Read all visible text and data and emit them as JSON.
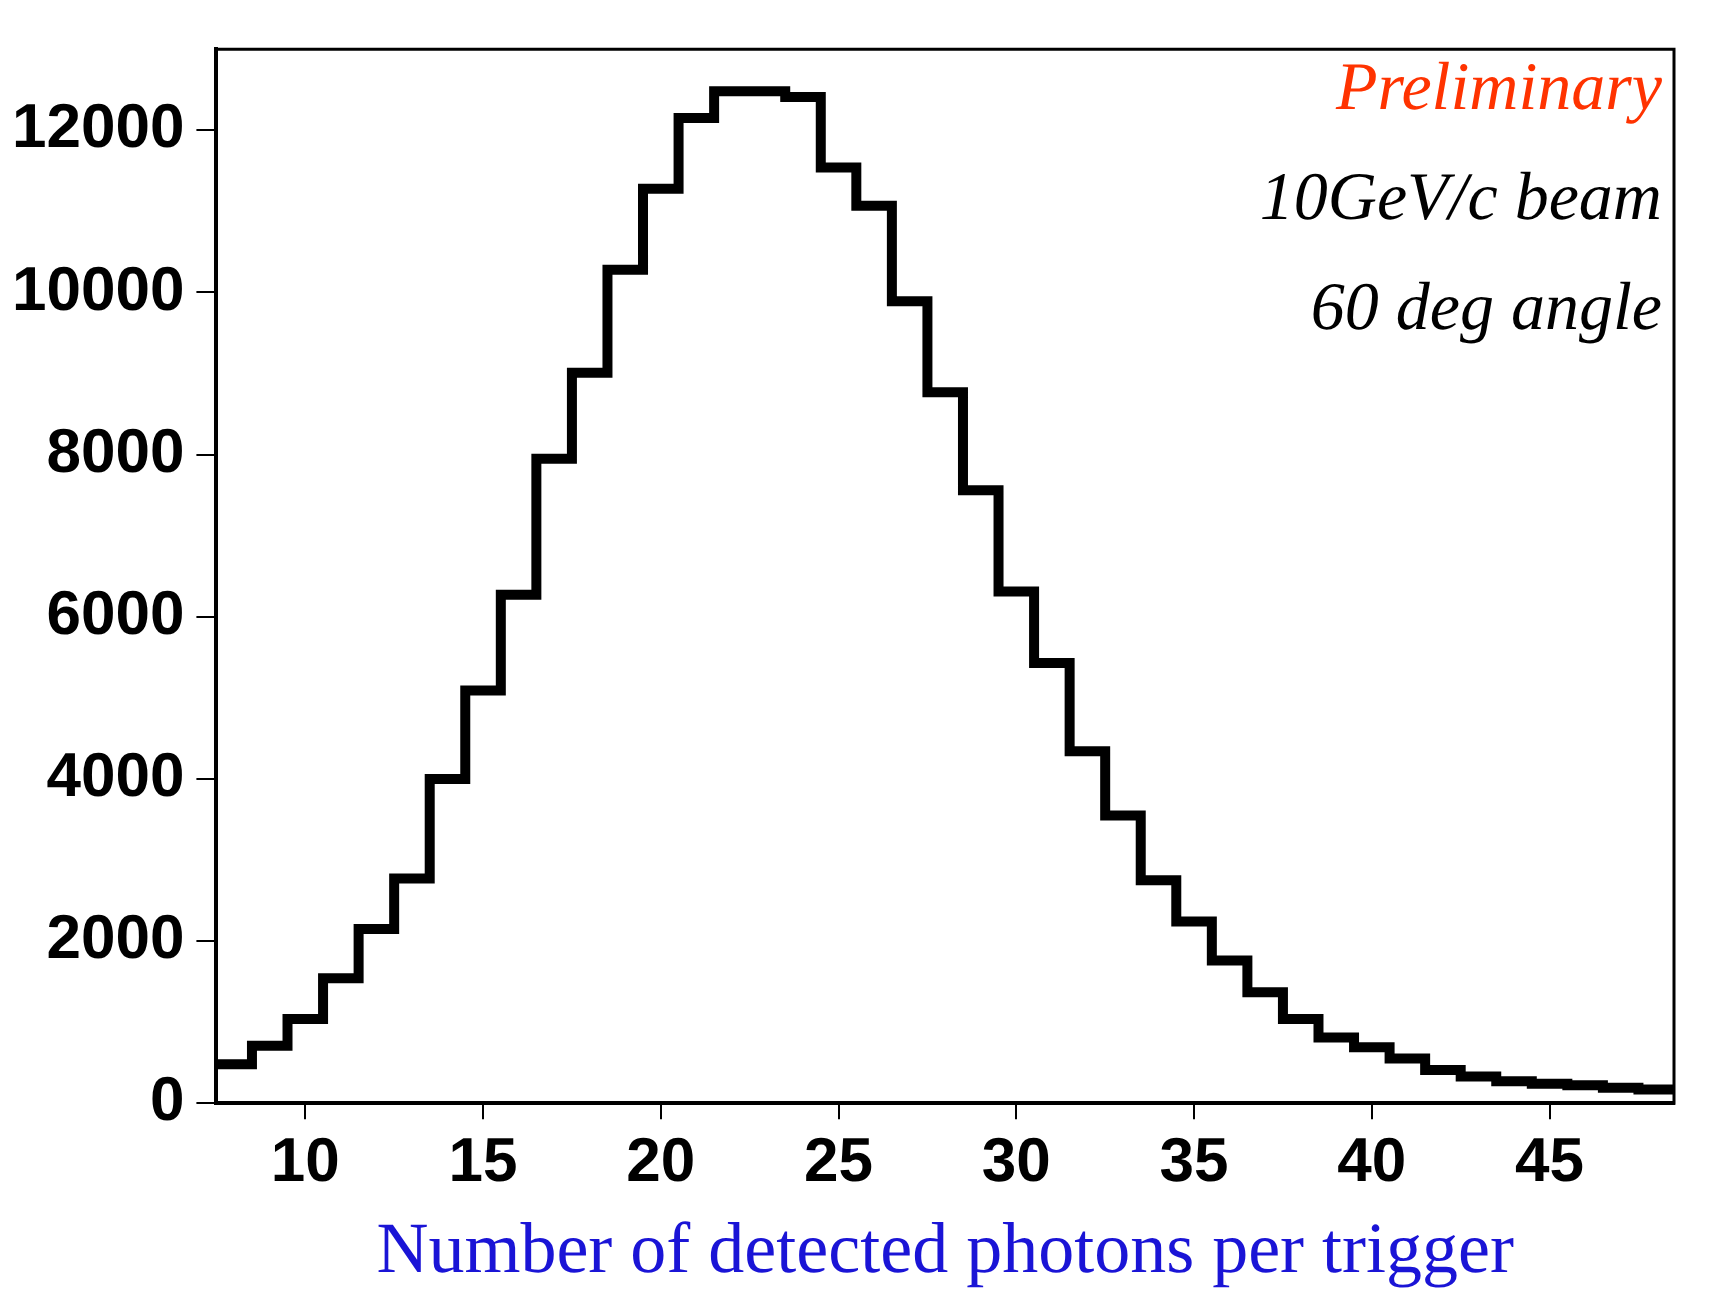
{
  "chart_data": {
    "type": "histogram",
    "xlabel": "Number of detected photons per trigger",
    "bins": [
      7.5,
      8.5,
      9.5,
      10.5,
      11.5,
      12.5,
      13.5,
      14.5,
      15.5,
      16.5,
      17.5,
      18.5,
      19.5,
      20.5,
      21.5,
      22.5,
      23.5,
      24.5,
      25.5,
      26.5,
      27.5,
      28.5,
      29.5,
      30.5,
      31.5,
      32.5,
      33.5,
      34.5,
      35.5,
      36.5,
      37.5,
      38.5,
      39.5,
      40.5,
      41.5,
      42.5,
      43.5,
      44.5,
      45.5,
      46.5,
      47.5,
      48.5
    ],
    "values": [
      480,
      710,
      1040,
      1540,
      2150,
      2770,
      4000,
      5090,
      6270,
      7950,
      9010,
      10280,
      11280,
      12150,
      12480,
      12480,
      12410,
      11540,
      11070,
      9890,
      8770,
      7560,
      6310,
      5430,
      4340,
      3550,
      2750,
      2240,
      1760,
      1370,
      1040,
      810,
      690,
      550,
      410,
      330,
      270,
      240,
      220,
      190,
      170
    ],
    "color": "#000000",
    "xlim": [
      7.5,
      48.5
    ],
    "xticks": [
      10,
      15,
      20,
      25,
      30,
      35,
      40,
      45
    ],
    "ylim": [
      0,
      13000
    ],
    "yticks": [
      0,
      2000,
      4000,
      6000,
      8000,
      10000,
      12000
    ],
    "grid": false,
    "legend": false,
    "annotations": [
      "Preliminary",
      "10GeV/c beam",
      "60 deg angle"
    ]
  }
}
